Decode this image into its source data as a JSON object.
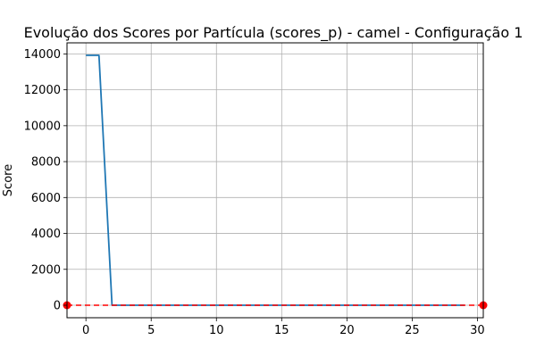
{
  "chart_data": {
    "type": "line",
    "title": "Evolução dos Scores por Partícula (scores_p) - camel - Configuração 1",
    "xlabel": "",
    "ylabel": "Score",
    "xlim": [
      -1.45,
      30.45
    ],
    "ylim": [
      -696,
      14616
    ],
    "grid": true,
    "xticks": [
      0,
      5,
      10,
      15,
      20,
      25,
      30
    ],
    "yticks": [
      0,
      2000,
      4000,
      6000,
      8000,
      10000,
      12000,
      14000
    ],
    "series": [
      {
        "color": "#1f77b4",
        "x": [
          0,
          1,
          2,
          3,
          4,
          5,
          6,
          7,
          8,
          9,
          10,
          11,
          12,
          13,
          14,
          15,
          16,
          17,
          18,
          19,
          20,
          21,
          22,
          23,
          24,
          25,
          26,
          27,
          28,
          29
        ],
        "values": [
          13920,
          13920,
          0,
          0,
          0,
          0,
          0,
          0,
          0,
          0,
          0,
          0,
          0,
          0,
          0,
          0,
          0,
          0,
          0,
          0,
          0,
          0,
          0,
          0,
          0,
          0,
          0,
          0,
          0,
          0
        ]
      },
      {
        "color": "#ff0000",
        "style": "dashed-with-markers",
        "x": [
          -1.45,
          30.45
        ],
        "values": [
          0,
          0
        ]
      }
    ]
  }
}
